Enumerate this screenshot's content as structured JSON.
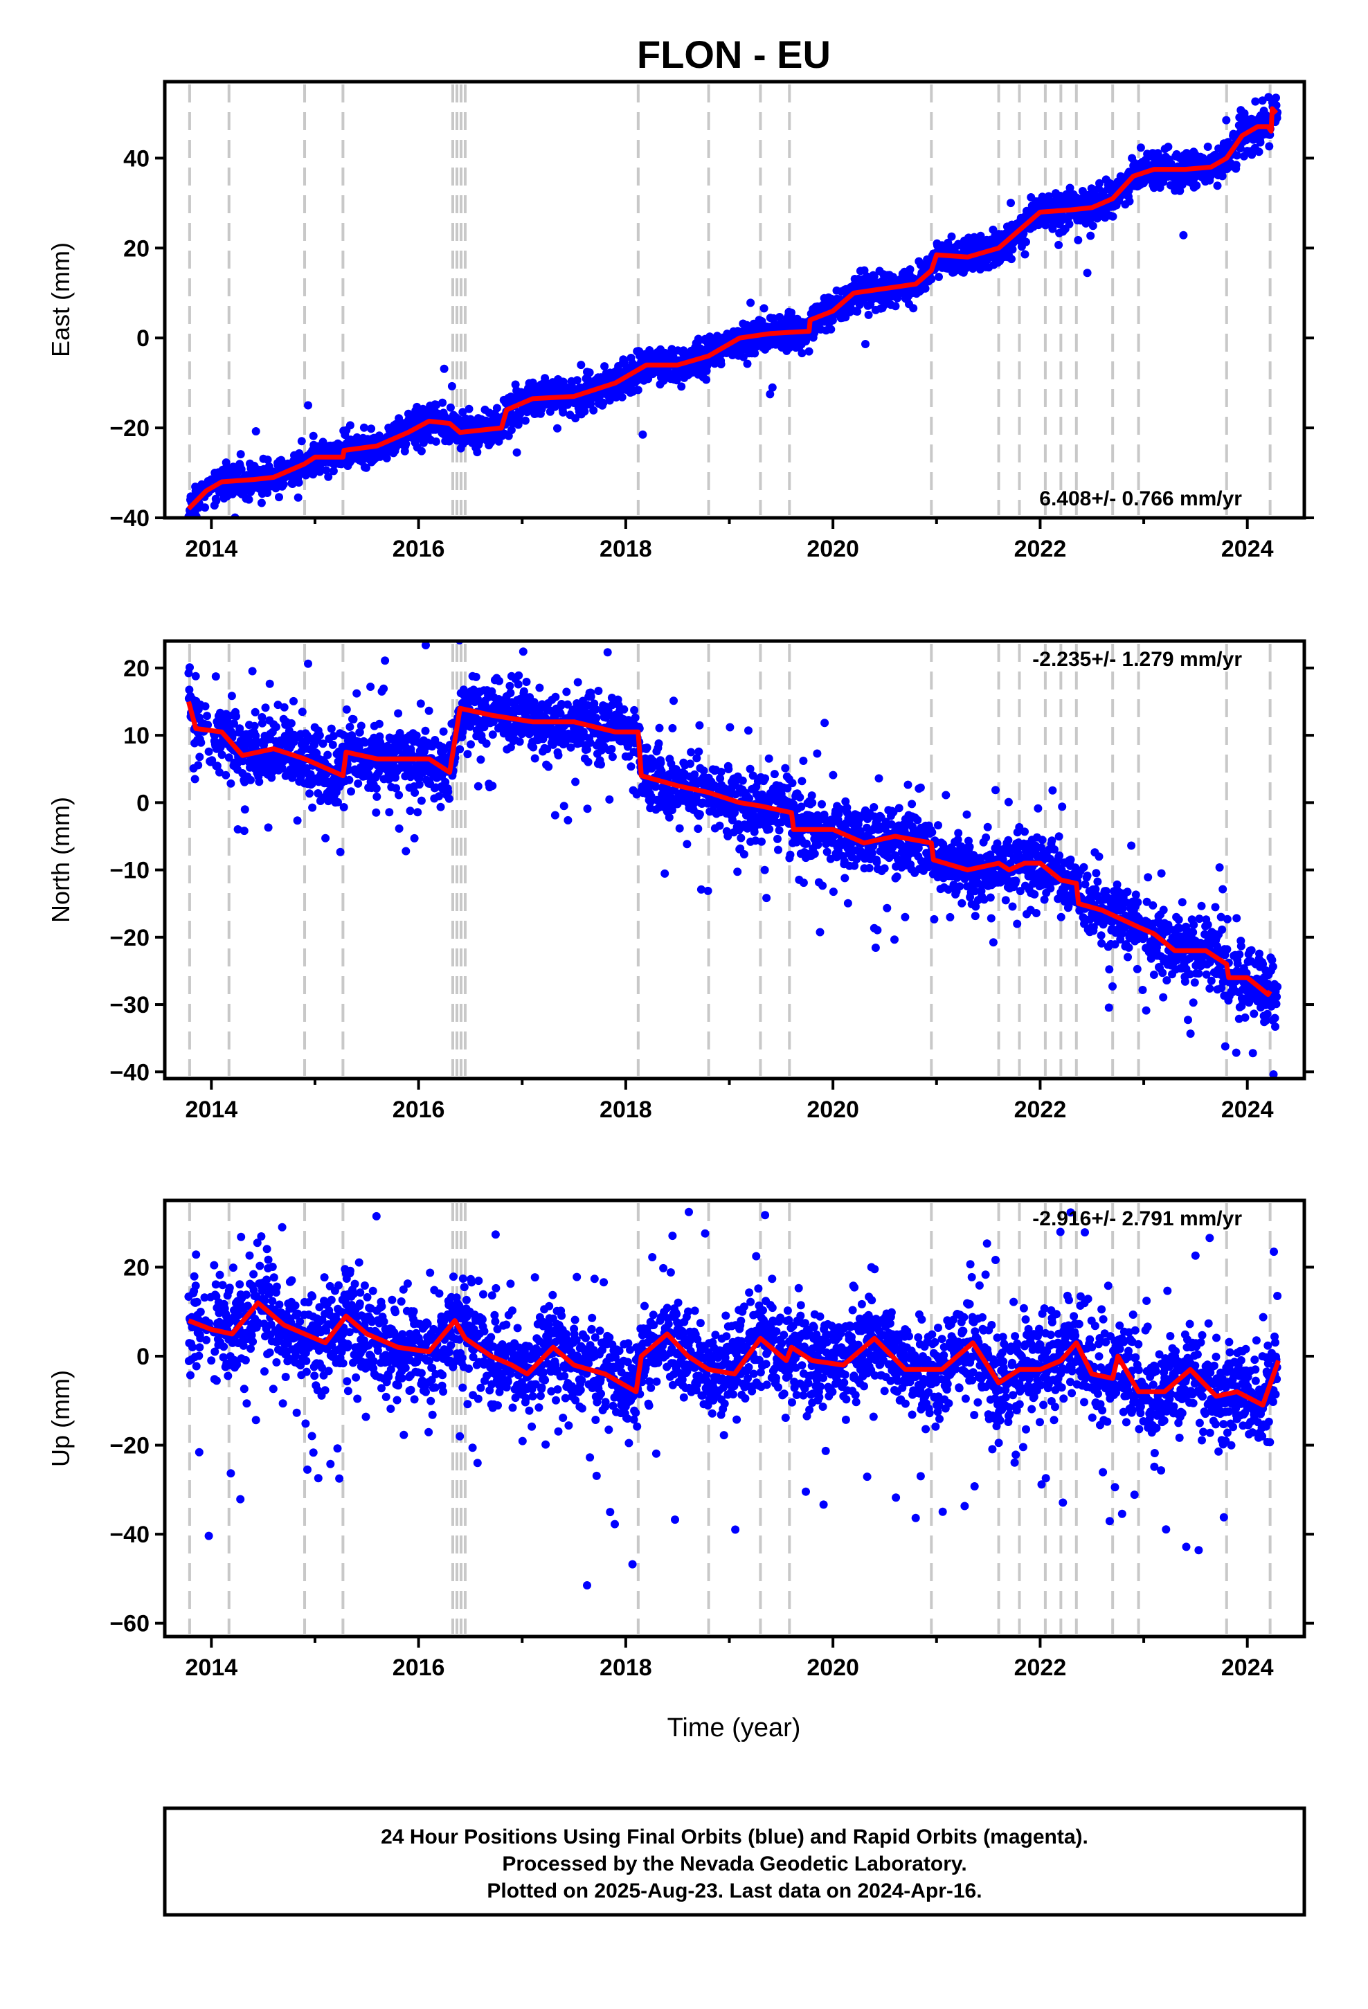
{
  "chart_data": {
    "type": "scatter",
    "title": "FLON - EU",
    "x_range": [
      2013.55,
      2024.55
    ],
    "x_ticks": [
      2014,
      2016,
      2018,
      2020,
      2022,
      2024
    ],
    "x_tick_labels": [
      "2014",
      "2016",
      "2018",
      "2020",
      "2022",
      "2024"
    ],
    "xlabel": "Time (year)",
    "colors": {
      "points": "#0000ff",
      "model": "#ff0000",
      "events": "#c8c8c8",
      "frame": "#000000"
    },
    "event_lines": [
      2013.79,
      2014.17,
      2014.9,
      2015.27,
      2016.33,
      2016.37,
      2016.41,
      2016.45,
      2018.12,
      2018.8,
      2019.3,
      2019.58,
      2020.95,
      2021.6,
      2021.8,
      2022.05,
      2022.2,
      2022.35,
      2022.7,
      2022.95,
      2023.8,
      2024.22
    ],
    "panels": [
      {
        "key": "east",
        "ylabel": "East (mm)",
        "ylim": [
          -40,
          57
        ],
        "y_ticks": [
          -40,
          -20,
          0,
          20,
          40
        ],
        "y_tick_labels": [
          "−40",
          "−20",
          "0",
          "20",
          "40"
        ],
        "rate": "6.408+/- 0.766 mm/yr",
        "rate_position": "bottom-right",
        "noise": 1.8,
        "spread": 3,
        "outlier_rate": 0.01,
        "seed": 11,
        "model": [
          [
            2013.78,
            -38
          ],
          [
            2013.95,
            -34
          ],
          [
            2014.1,
            -32
          ],
          [
            2014.4,
            -31.5
          ],
          [
            2014.6,
            -31
          ],
          [
            2014.9,
            -28
          ],
          [
            2015.0,
            -26.5
          ],
          [
            2015.27,
            -26.5
          ],
          [
            2015.28,
            -25
          ],
          [
            2015.6,
            -24
          ],
          [
            2015.9,
            -21
          ],
          [
            2016.1,
            -18.5
          ],
          [
            2016.3,
            -19
          ],
          [
            2016.4,
            -21
          ],
          [
            2016.8,
            -20
          ],
          [
            2016.85,
            -16
          ],
          [
            2017.1,
            -13.5
          ],
          [
            2017.5,
            -13
          ],
          [
            2017.9,
            -10
          ],
          [
            2018.2,
            -6
          ],
          [
            2018.5,
            -6
          ],
          [
            2018.8,
            -4
          ],
          [
            2019.1,
            0
          ],
          [
            2019.4,
            1
          ],
          [
            2019.77,
            1.5
          ],
          [
            2019.78,
            4
          ],
          [
            2020.0,
            6
          ],
          [
            2020.2,
            10
          ],
          [
            2020.5,
            11
          ],
          [
            2020.8,
            12
          ],
          [
            2020.95,
            15
          ],
          [
            2021.0,
            18.5
          ],
          [
            2021.3,
            18
          ],
          [
            2021.6,
            20
          ],
          [
            2021.8,
            24
          ],
          [
            2022.0,
            28
          ],
          [
            2022.3,
            28.5
          ],
          [
            2022.5,
            29
          ],
          [
            2022.7,
            31
          ],
          [
            2022.9,
            36
          ],
          [
            2023.1,
            37.5
          ],
          [
            2023.4,
            37.5
          ],
          [
            2023.65,
            38
          ],
          [
            2023.8,
            40
          ],
          [
            2023.95,
            45
          ],
          [
            2024.1,
            47
          ],
          [
            2024.2,
            47
          ],
          [
            2024.23,
            46
          ],
          [
            2024.24,
            51
          ],
          [
            2024.28,
            50
          ]
        ]
      },
      {
        "key": "north",
        "ylabel": "North (mm)",
        "ylim": [
          -41,
          24
        ],
        "y_ticks": [
          -40,
          -30,
          -20,
          -10,
          0,
          10,
          20
        ],
        "y_tick_labels": [
          "−40",
          "−30",
          "−20",
          "−10",
          "0",
          "10",
          "20"
        ],
        "rate": "-2.235+/- 1.279 mm/yr",
        "rate_position": "top-right",
        "noise": 1.8,
        "spread": 5,
        "outlier_rate": 0.06,
        "seed": 23,
        "model": [
          [
            2013.78,
            15
          ],
          [
            2013.85,
            11
          ],
          [
            2014.1,
            10.5
          ],
          [
            2014.3,
            7
          ],
          [
            2014.6,
            8
          ],
          [
            2014.9,
            6.5
          ],
          [
            2015.27,
            4
          ],
          [
            2015.3,
            7.5
          ],
          [
            2015.6,
            6.5
          ],
          [
            2015.9,
            6.5
          ],
          [
            2016.1,
            6.5
          ],
          [
            2016.3,
            4.5
          ],
          [
            2016.4,
            14
          ],
          [
            2016.7,
            13
          ],
          [
            2017.1,
            12
          ],
          [
            2017.5,
            12
          ],
          [
            2017.9,
            10.5
          ],
          [
            2018.12,
            10.5
          ],
          [
            2018.15,
            4
          ],
          [
            2018.5,
            2.5
          ],
          [
            2018.8,
            1.5
          ],
          [
            2019.1,
            0
          ],
          [
            2019.3,
            -0.5
          ],
          [
            2019.6,
            -1.5
          ],
          [
            2019.62,
            -4
          ],
          [
            2020.0,
            -4
          ],
          [
            2020.3,
            -6
          ],
          [
            2020.6,
            -5
          ],
          [
            2020.95,
            -6
          ],
          [
            2020.97,
            -8.5
          ],
          [
            2021.3,
            -10
          ],
          [
            2021.6,
            -9
          ],
          [
            2021.7,
            -10
          ],
          [
            2021.85,
            -9
          ],
          [
            2022.0,
            -9
          ],
          [
            2022.2,
            -11.5
          ],
          [
            2022.35,
            -12
          ],
          [
            2022.37,
            -15
          ],
          [
            2022.6,
            -16
          ],
          [
            2022.95,
            -18.5
          ],
          [
            2023.1,
            -19.5
          ],
          [
            2023.3,
            -22
          ],
          [
            2023.6,
            -22
          ],
          [
            2023.8,
            -24
          ],
          [
            2023.82,
            -26
          ],
          [
            2024.0,
            -26
          ],
          [
            2024.2,
            -28.5
          ],
          [
            2024.22,
            -28
          ]
        ]
      },
      {
        "key": "up",
        "ylabel": "Up (mm)",
        "ylim": [
          -63,
          35
        ],
        "y_ticks": [
          -60,
          -40,
          -20,
          0,
          20
        ],
        "y_tick_labels": [
          "−60",
          "−40",
          "−20",
          "0",
          "20"
        ],
        "rate": "-2.916+/- 2.791 mm/yr",
        "rate_position": "top-right",
        "noise": 5.5,
        "spread": 2,
        "outlier_rate": 0.04,
        "seed": 37,
        "model": [
          [
            2013.78,
            8
          ],
          [
            2014.0,
            6
          ],
          [
            2014.2,
            5
          ],
          [
            2014.45,
            12
          ],
          [
            2014.7,
            7
          ],
          [
            2014.9,
            5
          ],
          [
            2015.1,
            3
          ],
          [
            2015.3,
            9
          ],
          [
            2015.5,
            5
          ],
          [
            2015.8,
            2
          ],
          [
            2016.1,
            1
          ],
          [
            2016.35,
            8
          ],
          [
            2016.45,
            4
          ],
          [
            2016.7,
            0
          ],
          [
            2016.9,
            -2
          ],
          [
            2017.05,
            -4
          ],
          [
            2017.3,
            2
          ],
          [
            2017.5,
            -2
          ],
          [
            2017.8,
            -4
          ],
          [
            2018.1,
            -8
          ],
          [
            2018.15,
            0
          ],
          [
            2018.4,
            5
          ],
          [
            2018.6,
            0
          ],
          [
            2018.8,
            -3
          ],
          [
            2019.05,
            -4
          ],
          [
            2019.3,
            4
          ],
          [
            2019.55,
            -1
          ],
          [
            2019.6,
            2
          ],
          [
            2019.8,
            -1
          ],
          [
            2020.1,
            -2
          ],
          [
            2020.4,
            4
          ],
          [
            2020.7,
            -3
          ],
          [
            2020.95,
            -3
          ],
          [
            2021.05,
            -3
          ],
          [
            2021.35,
            3
          ],
          [
            2021.6,
            -6
          ],
          [
            2021.8,
            -3
          ],
          [
            2022.0,
            -3
          ],
          [
            2022.2,
            -1
          ],
          [
            2022.35,
            3
          ],
          [
            2022.5,
            -4
          ],
          [
            2022.7,
            -5
          ],
          [
            2022.75,
            0
          ],
          [
            2022.95,
            -8
          ],
          [
            2023.2,
            -8
          ],
          [
            2023.45,
            -3
          ],
          [
            2023.7,
            -9
          ],
          [
            2023.9,
            -8
          ],
          [
            2024.15,
            -11
          ],
          [
            2024.3,
            -1
          ]
        ]
      }
    ],
    "footnote_lines": [
      "24 Hour Positions Using Final Orbits (blue) and Rapid Orbits (magenta).",
      "Processed by the Nevada Geodetic Laboratory.",
      "Plotted on 2025-Aug-23. Last data on 2024-Apr-16."
    ]
  }
}
